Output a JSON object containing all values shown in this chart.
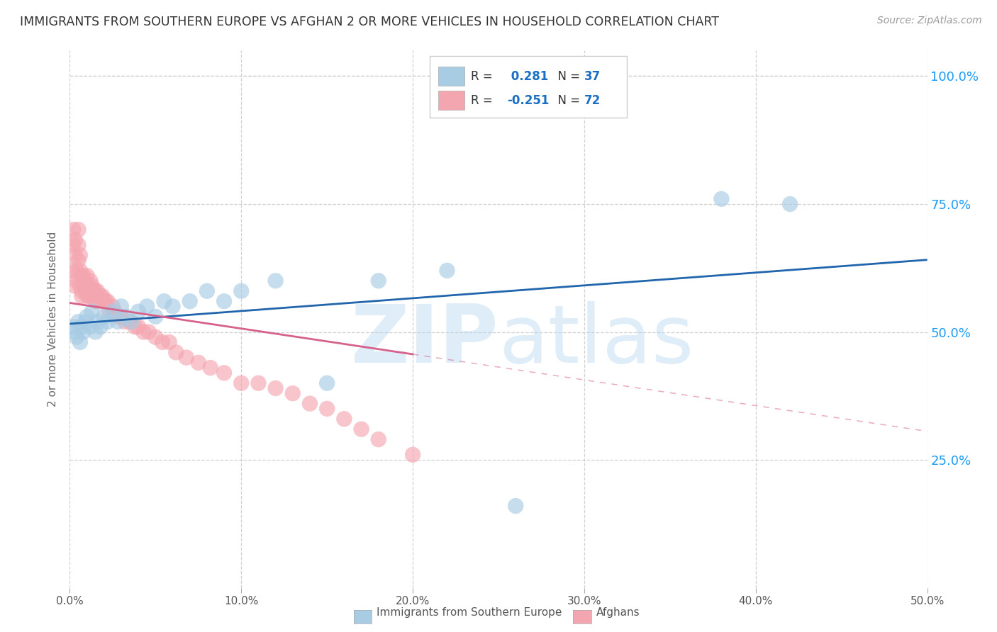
{
  "title": "IMMIGRANTS FROM SOUTHERN EUROPE VS AFGHAN 2 OR MORE VEHICLES IN HOUSEHOLD CORRELATION CHART",
  "source": "Source: ZipAtlas.com",
  "ylabel": "2 or more Vehicles in Household",
  "watermark_zip": "ZIP",
  "watermark_atlas": "atlas",
  "xlim": [
    0.0,
    0.5
  ],
  "ylim": [
    0.0,
    1.05
  ],
  "xtick_labels": [
    "0.0%",
    "10.0%",
    "20.0%",
    "30.0%",
    "40.0%",
    "50.0%"
  ],
  "xtick_vals": [
    0.0,
    0.1,
    0.2,
    0.3,
    0.4,
    0.5
  ],
  "ytick_labels": [
    "25.0%",
    "50.0%",
    "75.0%",
    "100.0%"
  ],
  "ytick_vals": [
    0.25,
    0.5,
    0.75,
    1.0
  ],
  "blue_color": "#a8cce4",
  "blue_line_color": "#2166ac",
  "pink_color": "#f4a6b0",
  "pink_line_color": "#d6618a",
  "blue_R": 0.281,
  "blue_N": 37,
  "pink_R": -0.251,
  "pink_N": 72,
  "blue_label": "Immigrants from Southern Europe",
  "pink_label": "Afghans",
  "blue_x": [
    0.002,
    0.003,
    0.004,
    0.005,
    0.006,
    0.007,
    0.008,
    0.009,
    0.01,
    0.012,
    0.013,
    0.015,
    0.016,
    0.018,
    0.02,
    0.022,
    0.025,
    0.028,
    0.03,
    0.033,
    0.036,
    0.04,
    0.045,
    0.05,
    0.055,
    0.06,
    0.07,
    0.08,
    0.09,
    0.1,
    0.12,
    0.15,
    0.18,
    0.22,
    0.26,
    0.38,
    0.42
  ],
  "blue_y": [
    0.51,
    0.5,
    0.49,
    0.52,
    0.48,
    0.51,
    0.5,
    0.52,
    0.53,
    0.51,
    0.54,
    0.5,
    0.52,
    0.51,
    0.53,
    0.52,
    0.54,
    0.52,
    0.55,
    0.53,
    0.52,
    0.54,
    0.55,
    0.53,
    0.56,
    0.55,
    0.56,
    0.58,
    0.56,
    0.58,
    0.6,
    0.4,
    0.6,
    0.62,
    0.16,
    0.76,
    0.75
  ],
  "pink_x": [
    0.001,
    0.002,
    0.002,
    0.003,
    0.003,
    0.003,
    0.004,
    0.004,
    0.005,
    0.005,
    0.005,
    0.006,
    0.006,
    0.006,
    0.007,
    0.007,
    0.007,
    0.008,
    0.008,
    0.008,
    0.009,
    0.009,
    0.01,
    0.01,
    0.01,
    0.011,
    0.011,
    0.012,
    0.012,
    0.013,
    0.013,
    0.014,
    0.014,
    0.015,
    0.015,
    0.016,
    0.016,
    0.017,
    0.018,
    0.019,
    0.02,
    0.021,
    0.022,
    0.023,
    0.025,
    0.026,
    0.028,
    0.03,
    0.032,
    0.035,
    0.038,
    0.04,
    0.043,
    0.046,
    0.05,
    0.054,
    0.058,
    0.062,
    0.068,
    0.075,
    0.082,
    0.09,
    0.1,
    0.11,
    0.12,
    0.13,
    0.14,
    0.15,
    0.16,
    0.17,
    0.18,
    0.2
  ],
  "pink_y": [
    0.62,
    0.7,
    0.67,
    0.59,
    0.65,
    0.68,
    0.62,
    0.6,
    0.64,
    0.67,
    0.7,
    0.59,
    0.62,
    0.65,
    0.58,
    0.61,
    0.57,
    0.6,
    0.59,
    0.61,
    0.58,
    0.6,
    0.57,
    0.59,
    0.61,
    0.57,
    0.59,
    0.58,
    0.6,
    0.57,
    0.59,
    0.57,
    0.58,
    0.56,
    0.58,
    0.56,
    0.58,
    0.56,
    0.57,
    0.57,
    0.56,
    0.56,
    0.56,
    0.54,
    0.55,
    0.54,
    0.53,
    0.53,
    0.52,
    0.52,
    0.51,
    0.51,
    0.5,
    0.5,
    0.49,
    0.48,
    0.48,
    0.46,
    0.45,
    0.44,
    0.43,
    0.42,
    0.4,
    0.4,
    0.39,
    0.38,
    0.36,
    0.35,
    0.33,
    0.31,
    0.29,
    0.26
  ],
  "bg_color": "#ffffff",
  "grid_color": "#d0d0d0",
  "blue_legend_val_color": "#1a6fc4",
  "pink_legend_val_color": "#1a6fc4",
  "right_axis_color": "#1a9af5"
}
